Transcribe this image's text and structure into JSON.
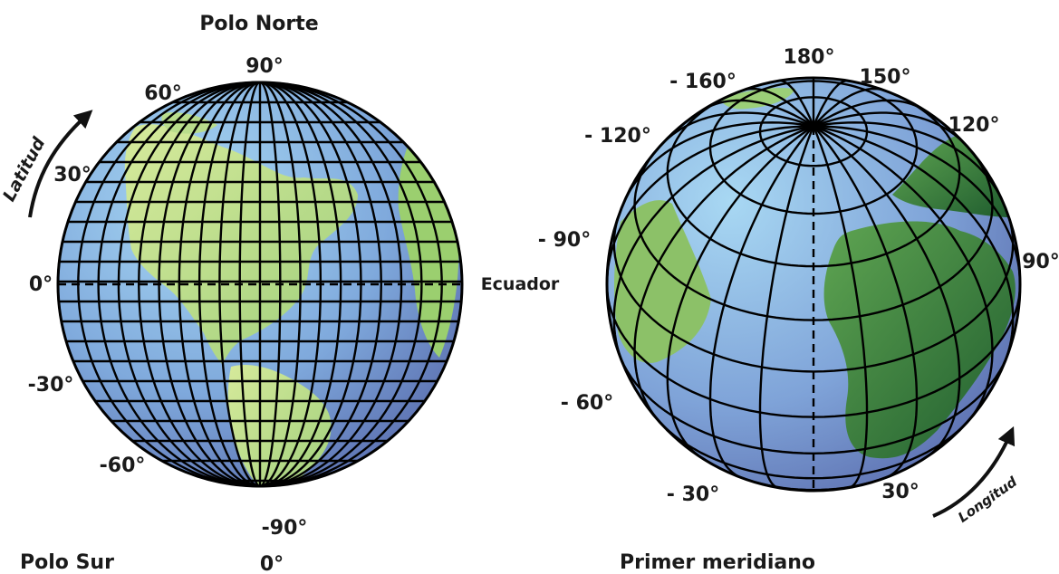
{
  "left_globe": {
    "title_top": "Polo Norte",
    "title_bottom": "Polo Sur",
    "equator_label": "Ecuador",
    "axis_label": "Latitud",
    "bottom_meridian": "0°",
    "latitudes": {
      "lat_90": "90°",
      "lat_60": "60°",
      "lat_30": "30°",
      "lat_0": "0°",
      "lat_m30": "-30°",
      "lat_m60": "-60°",
      "lat_m90": "-90°"
    }
  },
  "right_globe": {
    "title_bottom": "Primer meridiano",
    "axis_label": "Longitud",
    "longitudes": {
      "lon_180": "180°",
      "lon_m160": "- 160°",
      "lon_150": "150°",
      "lon_m120": "- 120°",
      "lon_120": "120°",
      "lon_m90": "- 90°",
      "lon_90": "90°",
      "lon_m60": "- 60°",
      "lon_m30": "- 30°",
      "lon_30": "30°"
    }
  },
  "colors": {
    "ocean_light": "#9fd2f1",
    "ocean_dark": "#5b6fb0",
    "land_light": "#cfe597",
    "land_dark": "#2f7a3c",
    "grid": "#000000"
  }
}
